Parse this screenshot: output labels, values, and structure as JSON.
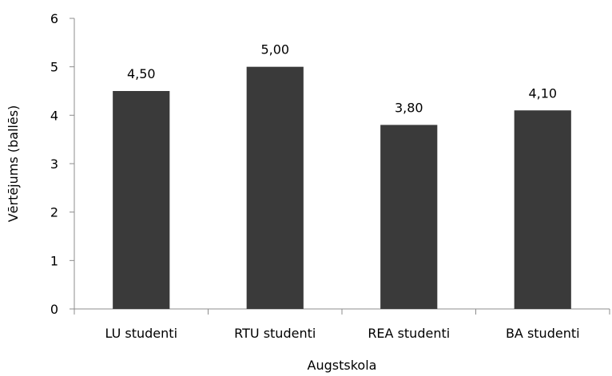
{
  "chart_data": {
    "type": "bar",
    "categories": [
      "LU studenti",
      "RTU studenti",
      "REA studenti",
      "BA studenti"
    ],
    "values": [
      4.5,
      5.0,
      3.8,
      4.1
    ],
    "data_labels": [
      "4,50",
      "5,00",
      "3,80",
      "4,10"
    ],
    "title": "",
    "xlabel": "Augstskola",
    "ylabel": "Vērtējums (ballēs)",
    "ylim": [
      0,
      6
    ],
    "yticks": [
      0,
      1,
      2,
      3,
      4,
      5,
      6
    ],
    "ytick_labels": [
      "0",
      "1",
      "2",
      "3",
      "4",
      "5",
      "6"
    ],
    "grid": false,
    "legend": "none",
    "colors": {
      "bar": "#3a3a3a",
      "axis": "#8c8c8c"
    }
  }
}
